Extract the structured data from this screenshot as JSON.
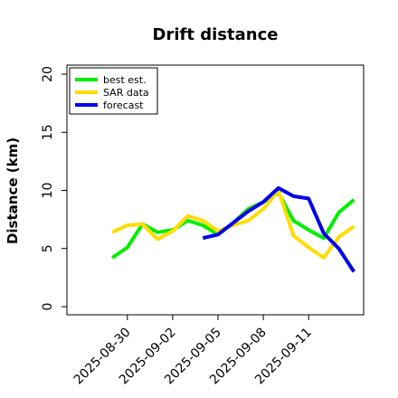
{
  "chart_data": {
    "type": "line",
    "title": "Drift distance",
    "xlabel": "",
    "ylabel": "Distance (km)",
    "ylim": [
      0,
      20
    ],
    "yticks": [
      "0",
      "5",
      "10",
      "15",
      "20"
    ],
    "xlim": [
      "2025-08-26",
      "2025-09-18"
    ],
    "xticks": [
      "2025-08-30",
      "2025-09-02",
      "2025-09-05",
      "2025-09-08",
      "2025-09-11"
    ],
    "grid": false,
    "legend": {
      "position": "top-left",
      "entries": [
        {
          "label": "best est.",
          "color": "#00ee00"
        },
        {
          "label": "SAR data",
          "color": "#ffdd00"
        },
        {
          "label": "forecast",
          "color": "#0000ee"
        }
      ]
    },
    "series": [
      {
        "name": "best est.",
        "color": "#00ee00",
        "points": [
          [
            "2025-08-29",
            4.2
          ],
          [
            "2025-08-30",
            5.1
          ],
          [
            "2025-08-31",
            7.1
          ],
          [
            "2025-09-01",
            6.4
          ],
          [
            "2025-09-02",
            6.6
          ],
          [
            "2025-09-03",
            7.4
          ],
          [
            "2025-09-04",
            7.0
          ],
          [
            "2025-09-05",
            6.2
          ],
          [
            "2025-09-06",
            7.2
          ],
          [
            "2025-09-07",
            8.4
          ],
          [
            "2025-09-08",
            9.0
          ],
          [
            "2025-09-09",
            9.8
          ],
          [
            "2025-09-10",
            7.4
          ],
          [
            "2025-09-11",
            6.6
          ],
          [
            "2025-09-12",
            5.9
          ],
          [
            "2025-09-13",
            8.1
          ],
          [
            "2025-09-14",
            9.2
          ]
        ]
      },
      {
        "name": "SAR data",
        "color": "#ffdd00",
        "points": [
          [
            "2025-08-29",
            6.4
          ],
          [
            "2025-08-30",
            7.0
          ],
          [
            "2025-08-31",
            7.1
          ],
          [
            "2025-09-01",
            5.8
          ],
          [
            "2025-09-02",
            6.5
          ],
          [
            "2025-09-03",
            7.8
          ],
          [
            "2025-09-04",
            7.4
          ],
          [
            "2025-09-05",
            6.5
          ],
          [
            "2025-09-06",
            7.0
          ],
          [
            "2025-09-07",
            7.4
          ],
          [
            "2025-09-08",
            8.4
          ],
          [
            "2025-09-09",
            10.0
          ],
          [
            "2025-09-10",
            6.1
          ],
          [
            "2025-09-11",
            5.1
          ],
          [
            "2025-09-12",
            4.2
          ],
          [
            "2025-09-13",
            6.0
          ],
          [
            "2025-09-14",
            6.9
          ]
        ]
      },
      {
        "name": "forecast",
        "color": "#0000ee",
        "points": [
          [
            "2025-09-04",
            5.9
          ],
          [
            "2025-09-05",
            6.2
          ],
          [
            "2025-09-07",
            8.2
          ],
          [
            "2025-09-08",
            9.0
          ],
          [
            "2025-09-09",
            10.2
          ],
          [
            "2025-09-10",
            9.5
          ],
          [
            "2025-09-11",
            9.3
          ],
          [
            "2025-09-12",
            6.3
          ],
          [
            "2025-09-13",
            5.0
          ],
          [
            "2025-09-14",
            3.0
          ]
        ]
      }
    ]
  }
}
